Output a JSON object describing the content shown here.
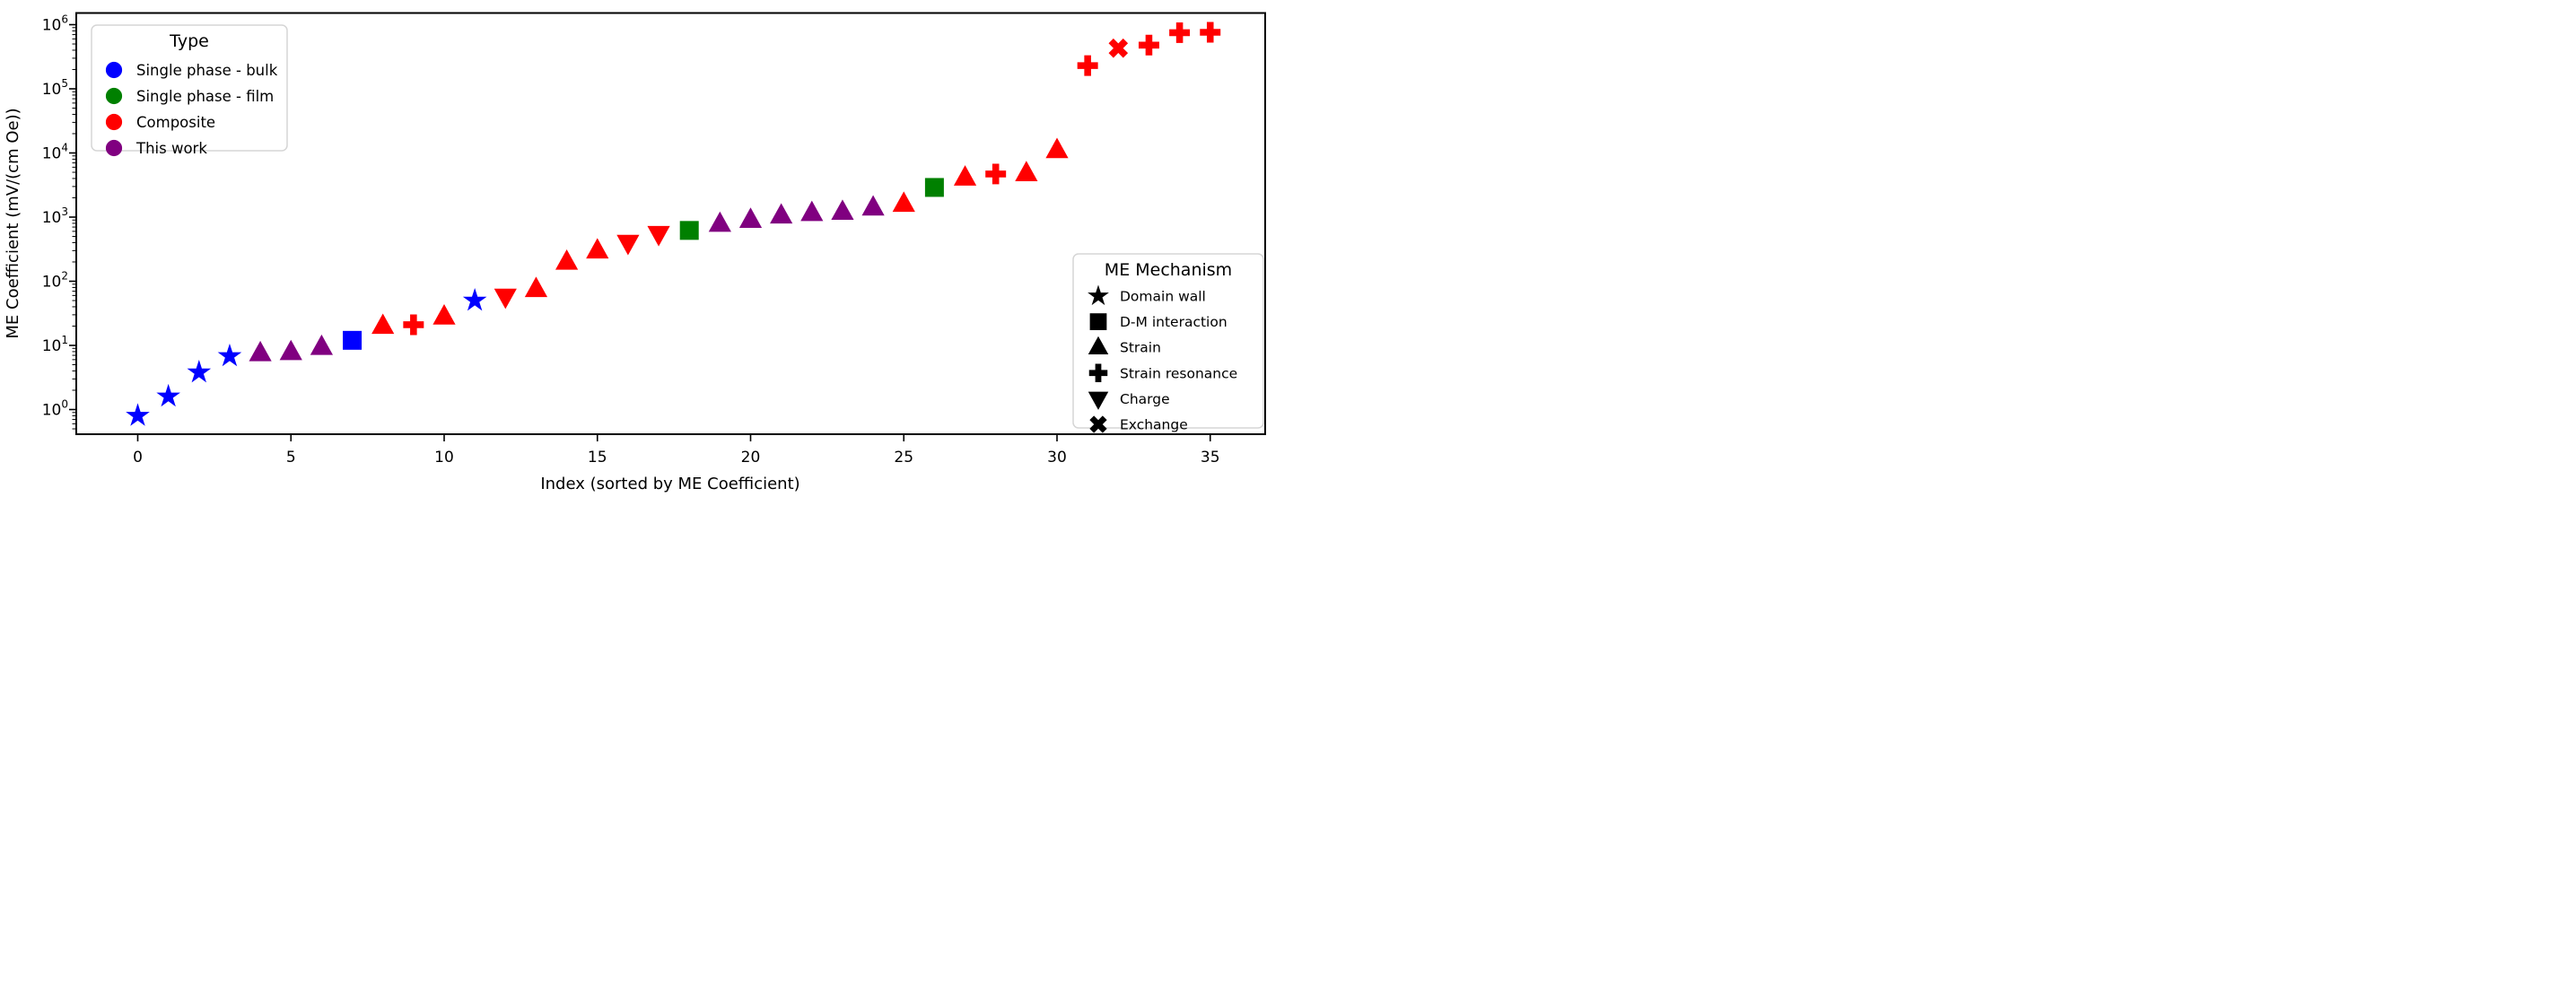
{
  "figure": {
    "xlabel": "Index (sorted by ME Coefficient)",
    "ylabel": "ME Coefficient (mV/(cm Oe))"
  },
  "legends": {
    "type": {
      "title": "Type",
      "items": [
        {
          "label": "Single phase - bulk",
          "type_key": "bulk",
          "color": "#0000ff"
        },
        {
          "label": "Single phase - film",
          "type_key": "film",
          "color": "#008000"
        },
        {
          "label": "Composite",
          "type_key": "comp",
          "color": "#ff0000"
        },
        {
          "label": "This work",
          "type_key": "this",
          "color": "#800080"
        }
      ]
    },
    "mechanism": {
      "title": "ME Mechanism",
      "items": [
        {
          "label": "Domain wall",
          "marker": "star"
        },
        {
          "label": "D-M interaction",
          "marker": "square"
        },
        {
          "label": "Strain",
          "marker": "triangle-up"
        },
        {
          "label": "Strain resonance",
          "marker": "plus"
        },
        {
          "label": "Charge",
          "marker": "triangle-down"
        },
        {
          "label": "Exchange",
          "marker": "x"
        }
      ]
    }
  },
  "chart_data": {
    "type": "scatter",
    "title": "",
    "xlabel": "Index (sorted by ME Coefficient)",
    "ylabel": "ME Coefficient (mV/(cm Oe))",
    "x_axis": {
      "ticks": [
        0,
        5,
        10,
        15,
        20,
        25,
        30,
        35
      ],
      "range": [
        -2.0,
        36.8
      ]
    },
    "y_axis": {
      "scale": "log",
      "tick_exponents": [
        0,
        1,
        2,
        3,
        4,
        5,
        6
      ],
      "range_log10": [
        -0.385,
        6.18
      ],
      "grid": false
    },
    "type_colors": {
      "bulk": "#0000ff",
      "film": "#008000",
      "comp": "#ff0000",
      "this": "#800080"
    },
    "mechanism_labels": {
      "star": "Domain wall",
      "square": "D-M interaction",
      "triangle-up": "Strain",
      "plus": "Strain resonance",
      "triangle-down": "Charge",
      "x": "Exchange"
    },
    "points": [
      {
        "index": 0,
        "value": 0.8,
        "type": "bulk",
        "mechanism": "star"
      },
      {
        "index": 1,
        "value": 1.6,
        "type": "bulk",
        "mechanism": "star"
      },
      {
        "index": 2,
        "value": 3.8,
        "type": "bulk",
        "mechanism": "star"
      },
      {
        "index": 3,
        "value": 6.8,
        "type": "bulk",
        "mechanism": "star"
      },
      {
        "index": 4,
        "value": 7.5,
        "type": "this",
        "mechanism": "triangle-up"
      },
      {
        "index": 5,
        "value": 7.8,
        "type": "this",
        "mechanism": "triangle-up"
      },
      {
        "index": 6,
        "value": 9.4,
        "type": "this",
        "mechanism": "triangle-up"
      },
      {
        "index": 7,
        "value": 12,
        "type": "bulk",
        "mechanism": "square"
      },
      {
        "index": 8,
        "value": 20,
        "type": "comp",
        "mechanism": "triangle-up"
      },
      {
        "index": 9,
        "value": 21,
        "type": "comp",
        "mechanism": "plus"
      },
      {
        "index": 10,
        "value": 28,
        "type": "comp",
        "mechanism": "triangle-up"
      },
      {
        "index": 11,
        "value": 50,
        "type": "bulk",
        "mechanism": "star"
      },
      {
        "index": 12,
        "value": 58,
        "type": "comp",
        "mechanism": "triangle-down"
      },
      {
        "index": 13,
        "value": 75,
        "type": "comp",
        "mechanism": "triangle-up"
      },
      {
        "index": 14,
        "value": 200,
        "type": "comp",
        "mechanism": "triangle-up"
      },
      {
        "index": 15,
        "value": 300,
        "type": "comp",
        "mechanism": "triangle-up"
      },
      {
        "index": 16,
        "value": 400,
        "type": "comp",
        "mechanism": "triangle-down"
      },
      {
        "index": 17,
        "value": 550,
        "type": "comp",
        "mechanism": "triangle-down"
      },
      {
        "index": 18,
        "value": 620,
        "type": "film",
        "mechanism": "square"
      },
      {
        "index": 19,
        "value": 780,
        "type": "this",
        "mechanism": "triangle-up"
      },
      {
        "index": 20,
        "value": 900,
        "type": "this",
        "mechanism": "triangle-up"
      },
      {
        "index": 21,
        "value": 1050,
        "type": "this",
        "mechanism": "triangle-up"
      },
      {
        "index": 22,
        "value": 1150,
        "type": "this",
        "mechanism": "triangle-up"
      },
      {
        "index": 23,
        "value": 1200,
        "type": "this",
        "mechanism": "triangle-up"
      },
      {
        "index": 24,
        "value": 1400,
        "type": "this",
        "mechanism": "triangle-up"
      },
      {
        "index": 25,
        "value": 1600,
        "type": "comp",
        "mechanism": "triangle-up"
      },
      {
        "index": 26,
        "value": 2900,
        "type": "film",
        "mechanism": "square"
      },
      {
        "index": 27,
        "value": 4100,
        "type": "comp",
        "mechanism": "triangle-up"
      },
      {
        "index": 28,
        "value": 4700,
        "type": "comp",
        "mechanism": "plus"
      },
      {
        "index": 29,
        "value": 4800,
        "type": "comp",
        "mechanism": "triangle-up"
      },
      {
        "index": 30,
        "value": 11000,
        "type": "comp",
        "mechanism": "triangle-up"
      },
      {
        "index": 31,
        "value": 230000,
        "type": "comp",
        "mechanism": "plus"
      },
      {
        "index": 32,
        "value": 430000,
        "type": "comp",
        "mechanism": "x"
      },
      {
        "index": 33,
        "value": 480000,
        "type": "comp",
        "mechanism": "plus"
      },
      {
        "index": 34,
        "value": 750000,
        "type": "comp",
        "mechanism": "plus"
      },
      {
        "index": 35,
        "value": 760000,
        "type": "comp",
        "mechanism": "plus"
      }
    ]
  }
}
